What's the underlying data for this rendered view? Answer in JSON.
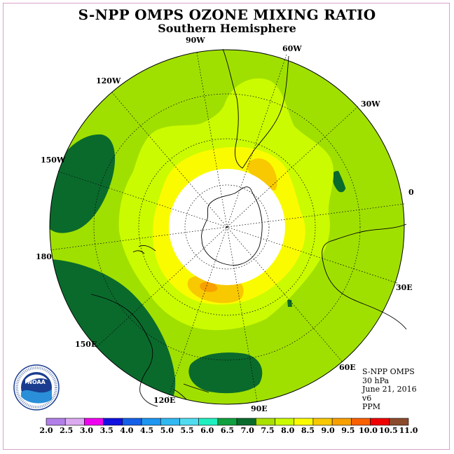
{
  "title": "S-NPP OMPS OZONE MIXING RATIO",
  "subtitle": "Southern Hemisphere",
  "info": {
    "instrument": "S-NPP OMPS",
    "level": "30 hPa",
    "date": "June 21, 2016",
    "version": "v6",
    "units": "PPM"
  },
  "logo_text": "NOAA",
  "logo_ring_text": "NATIONAL OCEANIC AND ATMOSPHERIC ADMINISTRATION · U.S. DEPARTMENT OF COMMERCE",
  "longitude_labels": [
    "90W",
    "60W",
    "30W",
    "0",
    "30E",
    "60E",
    "90E",
    "120E",
    "150E",
    "180",
    "150W",
    "120W"
  ],
  "colorbar": {
    "ticks": [
      "2.0",
      "2.5",
      "3.0",
      "3.5",
      "4.0",
      "4.5",
      "5.0",
      "5.5",
      "6.0",
      "6.5",
      "7.0",
      "7.5",
      "8.0",
      "8.5",
      "9.0",
      "9.5",
      "10.0",
      "10.5",
      "11.0"
    ],
    "colors": [
      "#b27fe8",
      "#dcaaf0",
      "#f000f0",
      "#1010e0",
      "#1460e8",
      "#1c96f0",
      "#30b8f0",
      "#50dcf0",
      "#20f0c0",
      "#10a040",
      "#0a6a2c",
      "#a8e000",
      "#cbfb00",
      "#fbfb00",
      "#f8c800",
      "#f8a000",
      "#f86000",
      "#f00000",
      "#8b4a2c"
    ]
  }
}
